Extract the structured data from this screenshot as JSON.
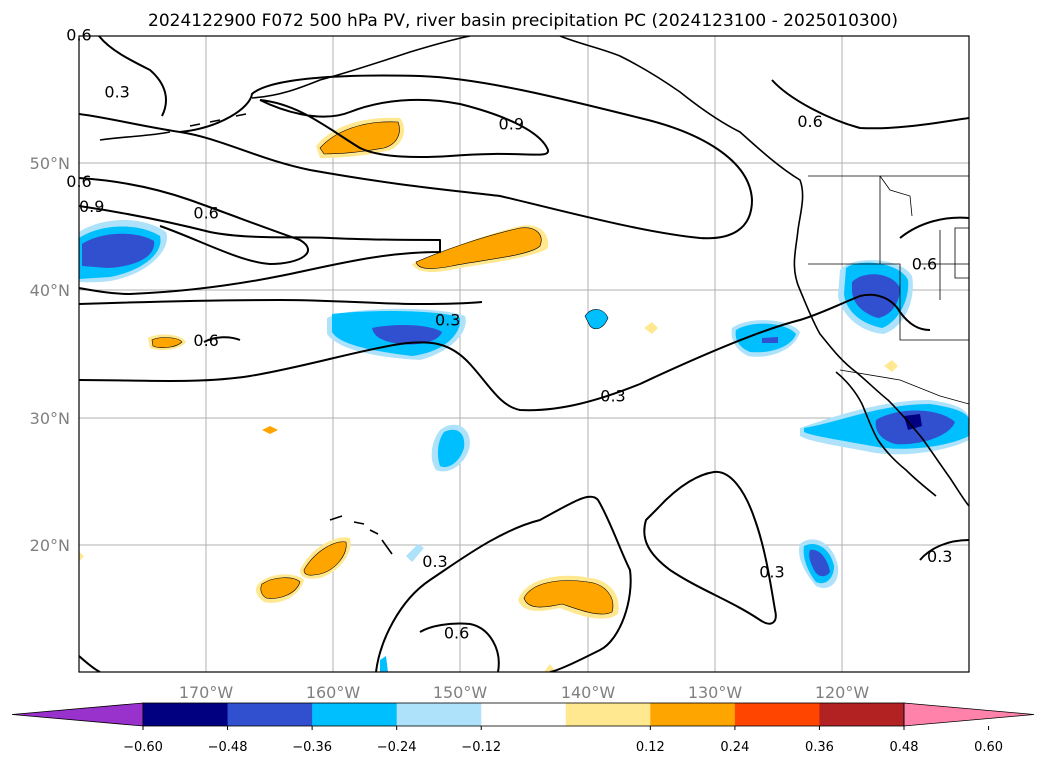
{
  "title": "2024122900 F072 500 hPa PV, river basin precipitation PC (2024123100 - 2025010300)",
  "map": {
    "lon_range": [
      -180,
      -110
    ],
    "lat_range": [
      10,
      60
    ],
    "projection": "PlateCarree",
    "grid": true,
    "lon_ticks": [
      "170°W",
      "160°W",
      "150°W",
      "140°W",
      "130°W",
      "120°W"
    ],
    "lat_ticks": [
      "50°N",
      "40°N",
      "30°N",
      "20°N"
    ]
  },
  "colorbar": {
    "ticks": [
      "−0.60",
      "−0.48",
      "−0.36",
      "−0.24",
      "−0.12",
      "0.12",
      "0.24",
      "0.36",
      "0.48",
      "0.60"
    ],
    "colors": [
      "#9932cc",
      "#000080",
      "#3050d0",
      "#00bfff",
      "#ade2fa",
      "#ffffff",
      "#ffe890",
      "#ffa500",
      "#ff4500",
      "#b22222",
      "#ff82ab"
    ],
    "extend": "both"
  },
  "pv_contour_labels": [
    {
      "text": "0.3",
      "lon": -177,
      "lat": 55.5
    },
    {
      "text": "0.9",
      "lon": -146,
      "lat": 53
    },
    {
      "text": "0.6",
      "lon": -122.5,
      "lat": 53.2
    },
    {
      "text": "0.6",
      "lon": -180,
      "lat": 60
    },
    {
      "text": "0.6",
      "lon": -180,
      "lat": 48.5
    },
    {
      "text": "0.9",
      "lon": -179,
      "lat": 46.5
    },
    {
      "text": "0.6",
      "lon": -170,
      "lat": 46
    },
    {
      "text": "0.6",
      "lon": -113.5,
      "lat": 42
    },
    {
      "text": "0.3",
      "lon": -151,
      "lat": 37.6
    },
    {
      "text": "0.6",
      "lon": -170,
      "lat": 36
    },
    {
      "text": "0.3",
      "lon": -138,
      "lat": 31.6
    },
    {
      "text": "0.3",
      "lon": -152,
      "lat": 18.6
    },
    {
      "text": "0.6",
      "lon": -150.3,
      "lat": 13
    },
    {
      "text": "0.3",
      "lon": -125.5,
      "lat": 17.8
    },
    {
      "text": "0.3",
      "lon": -112.3,
      "lat": 19
    }
  ]
}
